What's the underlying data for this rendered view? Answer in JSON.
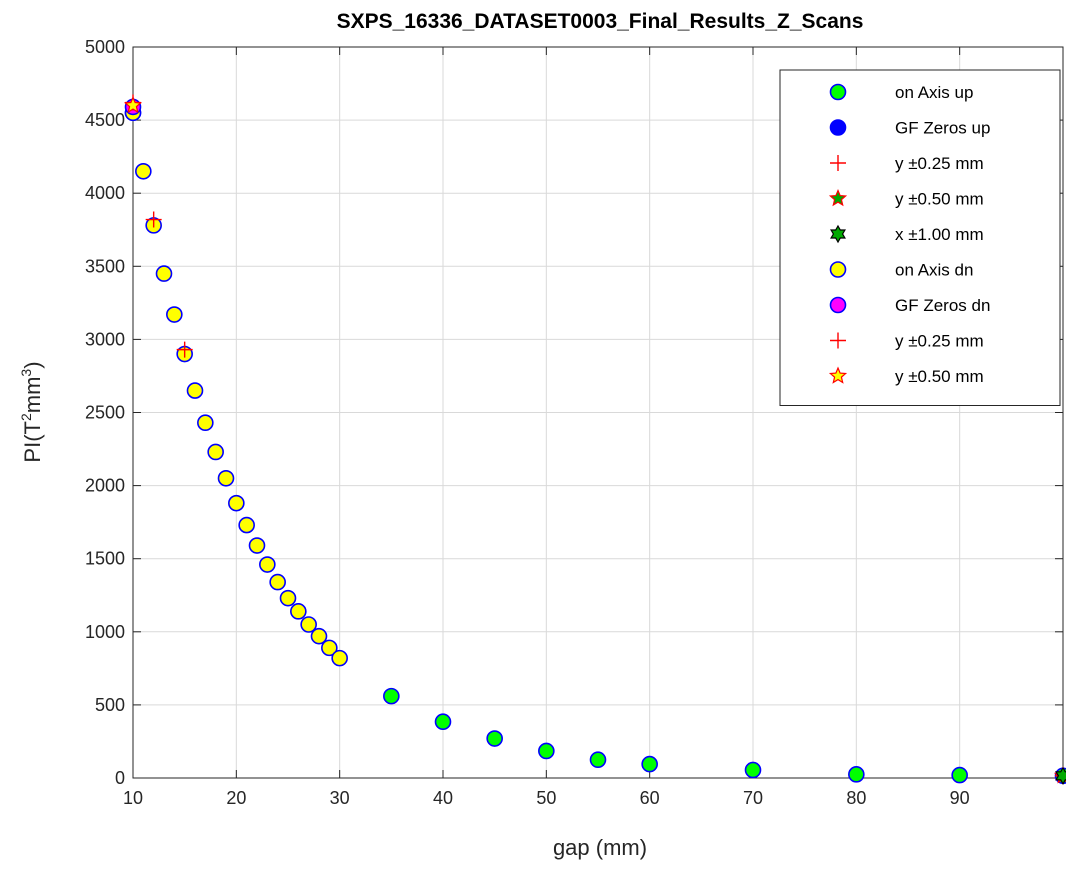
{
  "chart_data": {
    "type": "scatter",
    "title": "SXPS_16336_DATASET0003_Final_Results_Z_Scans",
    "xlabel": "gap (mm)",
    "ylabel_base": "PI(T",
    "ylabel_sup1": "2",
    "ylabel_mid": "mm",
    "ylabel_sup2": "3",
    "ylabel_end": ")",
    "xlim": [
      10,
      100
    ],
    "ylim": [
      0,
      5000
    ],
    "xticks": [
      10,
      20,
      30,
      40,
      50,
      60,
      70,
      80,
      90
    ],
    "yticks": [
      0,
      500,
      1000,
      1500,
      2000,
      2500,
      3000,
      3500,
      4000,
      4500,
      5000
    ],
    "grid": true,
    "legend_position": "top-right",
    "series": [
      {
        "name": "on Axis up",
        "marker": "circle",
        "fill": "#00ff00",
        "stroke": "#0000ff",
        "x": [
          35,
          40,
          45,
          50,
          55,
          60,
          70,
          80,
          90,
          100
        ],
        "y": [
          560,
          385,
          270,
          185,
          125,
          95,
          55,
          25,
          20,
          15
        ]
      },
      {
        "name": "GF Zeros up",
        "marker": "circle",
        "fill": "#0000ff",
        "stroke": "#0000ff",
        "x": [
          10
        ],
        "y": [
          4550
        ]
      },
      {
        "name": "y ±0.25 mm",
        "marker": "plus",
        "fill": "none",
        "stroke": "#ff0000",
        "x": [
          100
        ],
        "y": [
          15
        ]
      },
      {
        "name": "y ±0.50 mm",
        "marker": "star",
        "fill": "#00aa00",
        "stroke": "#ff0000",
        "x": [
          100
        ],
        "y": [
          15
        ]
      },
      {
        "name": "x ±1.00 mm",
        "marker": "hexagram",
        "fill": "#00aa00",
        "stroke": "#000000",
        "x": [
          100
        ],
        "y": [
          15
        ]
      },
      {
        "name": "on Axis dn",
        "marker": "circle",
        "fill": "#ffff00",
        "stroke": "#0000ff",
        "x": [
          10,
          11,
          12,
          13,
          14,
          15,
          16,
          17,
          18,
          19,
          20,
          21,
          22,
          23,
          24,
          25,
          26,
          27,
          28,
          29,
          30
        ],
        "y": [
          4550,
          4150,
          3780,
          3450,
          3170,
          2900,
          2650,
          2430,
          2230,
          2050,
          1880,
          1730,
          1590,
          1460,
          1340,
          1230,
          1140,
          1050,
          970,
          890,
          820
        ]
      },
      {
        "name": "GF Zeros dn",
        "marker": "circle",
        "fill": "#ff00ff",
        "stroke": "#0000ff",
        "x": [
          10
        ],
        "y": [
          4590
        ]
      },
      {
        "name": "y ±0.25 mm",
        "marker": "plus",
        "fill": "none",
        "stroke": "#ff0000",
        "x": [
          10,
          12,
          15
        ],
        "y": [
          4620,
          3820,
          2930
        ]
      },
      {
        "name": "y ±0.50 mm",
        "marker": "star",
        "fill": "#ffff00",
        "stroke": "#ff0000",
        "x": [
          10
        ],
        "y": [
          4600
        ]
      }
    ]
  }
}
